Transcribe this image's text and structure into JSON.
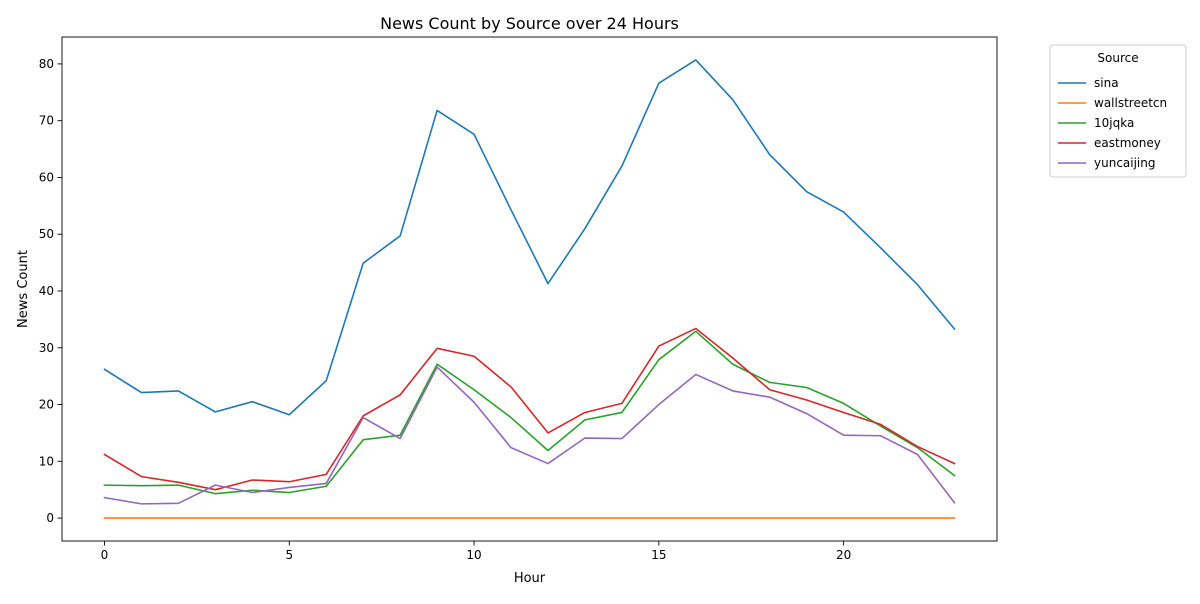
{
  "chart_data": {
    "type": "line",
    "title": "News Count by Source over 24 Hours",
    "xlabel": "Hour",
    "ylabel": "News Count",
    "xlim": [
      -1.15,
      24.15
    ],
    "ylim": [
      -4.04,
      84.74
    ],
    "xticks": [
      0,
      5,
      10,
      15,
      20
    ],
    "yticks": [
      0,
      10,
      20,
      30,
      40,
      50,
      60,
      70,
      80
    ],
    "grid": false,
    "legend": {
      "title": "Source",
      "placement": "outside-top-right"
    },
    "x": [
      0,
      1,
      2,
      3,
      4,
      5,
      6,
      7,
      8,
      9,
      10,
      11,
      12,
      13,
      14,
      15,
      16,
      17,
      18,
      19,
      20,
      21,
      22,
      23
    ],
    "series": [
      {
        "name": "sina",
        "color": "#1f77b4",
        "values": [
          26.2,
          22.1,
          22.4,
          18.7,
          20.5,
          18.2,
          24.2,
          44.9,
          49.7,
          71.8,
          67.6,
          54.3,
          41.3,
          51.0,
          62.0,
          76.6,
          80.7,
          73.7,
          64.0,
          57.5,
          53.9,
          47.6,
          41.1,
          33.3
        ]
      },
      {
        "name": "wallstreetcn",
        "color": "#ff7f0e",
        "values": [
          0,
          0,
          0,
          0,
          0,
          0,
          0,
          0,
          0,
          0,
          0,
          0,
          0,
          0,
          0,
          0,
          0,
          0,
          0,
          0,
          0,
          0,
          0,
          0
        ]
      },
      {
        "name": "10jqka",
        "color": "#2ca02c",
        "values": [
          5.8,
          5.7,
          5.8,
          4.3,
          4.9,
          4.5,
          5.6,
          13.8,
          14.6,
          27.1,
          22.6,
          17.7,
          11.9,
          17.3,
          18.6,
          27.9,
          32.9,
          27.1,
          23.9,
          23.0,
          20.2,
          16.2,
          12.4,
          7.5
        ]
      },
      {
        "name": "eastmoney",
        "color": "#d62728",
        "values": [
          11.2,
          7.3,
          6.3,
          5.0,
          6.7,
          6.4,
          7.7,
          18.0,
          21.7,
          29.9,
          28.5,
          23.1,
          15.0,
          18.6,
          20.2,
          30.3,
          33.4,
          28.2,
          22.6,
          20.8,
          18.6,
          16.5,
          12.6,
          9.6
        ]
      },
      {
        "name": "yuncaijing",
        "color": "#9467bd",
        "values": [
          3.6,
          2.5,
          2.6,
          5.8,
          4.5,
          5.4,
          6.1,
          17.7,
          14.0,
          26.6,
          20.4,
          12.4,
          9.6,
          14.1,
          14.0,
          20.0,
          25.3,
          22.4,
          21.3,
          18.4,
          14.6,
          14.5,
          11.2,
          2.7
        ]
      }
    ]
  }
}
